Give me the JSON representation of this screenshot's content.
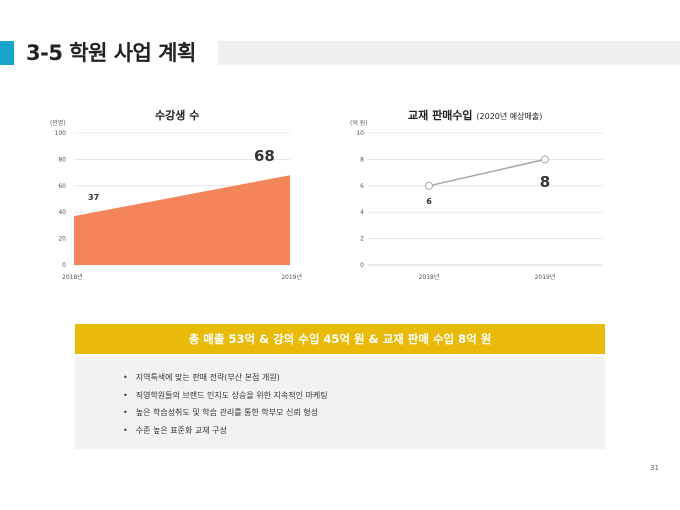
{
  "slide": {
    "title": "3-5 학원 사업 계획",
    "page_number": "31",
    "accent_color": "#16a3cc"
  },
  "chart_data": [
    {
      "type": "area",
      "title": "수강생 수",
      "unit_label": "(만명)",
      "categories": [
        "2018년",
        "2019년"
      ],
      "values": [
        37,
        68
      ],
      "value_labels": [
        "37",
        "68"
      ],
      "ylim": [
        0,
        100
      ],
      "yticks": [
        "0",
        "20",
        "40",
        "60",
        "80",
        "100"
      ],
      "grid": true,
      "color": "#f4845a"
    },
    {
      "type": "line",
      "title": "교재 판매수입",
      "subtitle": "(2020년 예상매출)",
      "unit_label": "(억 원)",
      "categories": [
        "2018년",
        "2019년"
      ],
      "values": [
        6,
        8
      ],
      "value_labels": [
        "6",
        "8"
      ],
      "ylim": [
        0,
        10
      ],
      "yticks": [
        "0",
        "2",
        "4",
        "6",
        "8",
        "10"
      ],
      "grid": true,
      "color": "#a6a6a6"
    }
  ],
  "summary": {
    "banner_text": "총 매출 53억 & 강의 수입 45억 원 & 교재 판매 수입 8억 원",
    "banner_color": "#e8bb0b",
    "bullets": [
      "지역특색에 맞는 판매 전략(부산 본점 개원)",
      "직영학원들의 브랜드 인지도 상승을 위한 지속적인 마케팅",
      "높은 학습성취도 및 학습 관리를 통한 학부모 신뢰 형성",
      "수준 높은 표준화 교재 구성"
    ]
  }
}
